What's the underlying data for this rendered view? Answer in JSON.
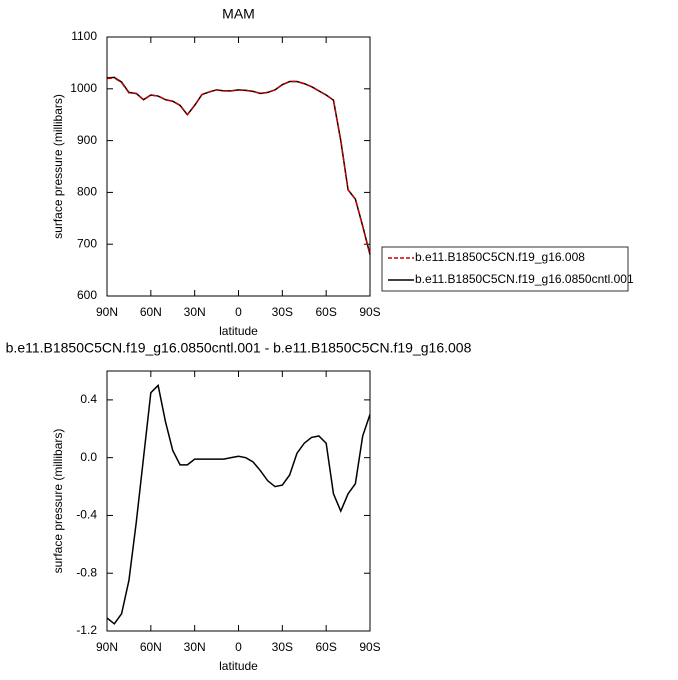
{
  "chart_data": [
    {
      "type": "line",
      "title": "MAM",
      "x_label": "latitude",
      "y_label": "surface pressure (millibars)",
      "x": [
        90,
        85,
        80,
        75,
        70,
        65,
        60,
        55,
        50,
        45,
        40,
        35,
        30,
        25,
        20,
        15,
        10,
        5,
        0,
        -5,
        -10,
        -15,
        -20,
        -25,
        -30,
        -35,
        -40,
        -45,
        -50,
        -55,
        -60,
        -65,
        -70,
        -75,
        -80,
        -85,
        -90
      ],
      "series": [
        {
          "name": "b.e11.B1850C5CN.f19_g16.008",
          "color": "#cc0000",
          "dashed": true,
          "values": [
            1020,
            1021,
            1012,
            992,
            991,
            979,
            988,
            986,
            979,
            976,
            968,
            950,
            968,
            989,
            994,
            998,
            996,
            996,
            998,
            997,
            995,
            991,
            993,
            998,
            1008,
            1014,
            1014,
            1010,
            1004,
            996,
            988,
            978,
            900,
            805,
            787,
            735,
            680
          ]
        },
        {
          "name": "b.e11.B1850C5CN.f19_g16.0850cntl.001",
          "color": "#000000",
          "dashed": false,
          "values": [
            1021,
            1022,
            1013,
            993,
            991,
            979,
            988,
            986,
            979,
            976,
            968,
            950,
            968,
            989,
            994,
            998,
            996,
            996,
            998,
            997,
            995,
            991,
            993,
            998,
            1008,
            1014,
            1014,
            1010,
            1004,
            996,
            988,
            978,
            900,
            805,
            787,
            735,
            680
          ]
        }
      ],
      "xlim": [
        90,
        -90
      ],
      "xticks": [
        {
          "value": 90,
          "label": "90N"
        },
        {
          "value": 60,
          "label": "60N"
        },
        {
          "value": 30,
          "label": "30N"
        },
        0,
        {
          "value": -30,
          "label": "30S"
        },
        {
          "value": -60,
          "label": "60S"
        },
        {
          "value": -90,
          "label": "90S"
        }
      ],
      "ylim": [
        600,
        1100
      ],
      "yticks": [
        600,
        700,
        800,
        900,
        1000,
        1100
      ],
      "legend": "right"
    },
    {
      "type": "line",
      "title": "b.e11.B1850C5CN.f19_g16.0850cntl.001 - b.e11.B1850C5CN.f19_g16.008",
      "x_label": "latitude",
      "y_label": "surface pressure (millibars)",
      "x": [
        90,
        85,
        80,
        75,
        70,
        65,
        60,
        55,
        50,
        45,
        40,
        35,
        30,
        25,
        20,
        15,
        10,
        5,
        0,
        -5,
        -10,
        -15,
        -20,
        -25,
        -30,
        -35,
        -40,
        -45,
        -50,
        -55,
        -60,
        -65,
        -70,
        -75,
        -80,
        -85,
        -90
      ],
      "color": "#000000",
      "values": [
        -1.11,
        -1.15,
        -1.08,
        -0.85,
        -0.45,
        0.0,
        0.45,
        0.5,
        0.25,
        0.05,
        -0.05,
        -0.05,
        -0.01,
        -0.01,
        -0.01,
        -0.01,
        -0.01,
        0.0,
        0.01,
        0.0,
        -0.03,
        -0.09,
        -0.16,
        -0.2,
        -0.19,
        -0.12,
        0.03,
        0.1,
        0.14,
        0.15,
        0.1,
        -0.25,
        -0.37,
        -0.25,
        -0.18,
        0.15,
        0.3
      ],
      "xlim": [
        90,
        -90
      ],
      "xticks": [
        {
          "value": 90,
          "label": "90N"
        },
        {
          "value": 60,
          "label": "60N"
        },
        {
          "value": 30,
          "label": "30N"
        },
        0,
        {
          "value": -30,
          "label": "30S"
        },
        {
          "value": -60,
          "label": "60S"
        },
        {
          "value": -90,
          "label": "90S"
        }
      ],
      "ylim": [
        -1.2,
        0.6
      ],
      "yticks": [
        -1.2,
        -0.8,
        -0.4,
        {
          "value": 0,
          "label": "0.0"
        },
        0.4
      ]
    }
  ]
}
